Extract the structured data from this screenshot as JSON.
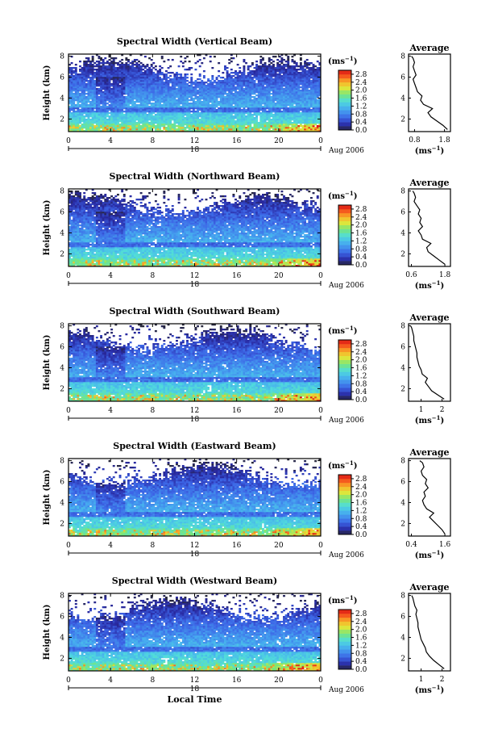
{
  "chart_data": [
    {
      "type": "heatmap",
      "title": "Spectral Width (Vertical Beam)",
      "ylabel": "Height (km)",
      "xlabel": "",
      "xticks": [
        "0",
        "4",
        "8",
        "12",
        "16",
        "20",
        "0"
      ],
      "yticks": [
        "2",
        "4",
        "6",
        "8"
      ],
      "xlim": [
        0,
        24
      ],
      "ylim": [
        0.8,
        8.2
      ],
      "colorbar": {
        "unit": "(ms-1)",
        "ticks": [
          "0.0",
          "0.4",
          "0.8",
          "1.2",
          "1.6",
          "2.0",
          "2.4",
          "2.8"
        ],
        "range": [
          0,
          3
        ]
      },
      "date_labels": {
        "day": "18",
        "month": "Aug 2006"
      },
      "profile": {
        "title": "Average",
        "xlabel": "(ms-1)",
        "xticks": [
          "0.8",
          "1.8"
        ],
        "xlim": [
          0.6,
          2.0
        ],
        "yticks": [
          "2",
          "4",
          "6",
          "8"
        ],
        "ylim": [
          0.8,
          8.2
        ],
        "height_km": [
          1.0,
          1.4,
          1.8,
          2.2,
          2.6,
          3.0,
          3.4,
          3.8,
          4.2,
          4.6,
          5.0,
          5.4,
          5.8,
          6.2,
          6.6,
          7.0,
          7.4,
          7.8,
          8.0
        ],
        "width": [
          1.9,
          1.75,
          1.55,
          1.35,
          1.25,
          1.4,
          1.1,
          1.0,
          1.05,
          0.9,
          0.85,
          0.8,
          0.75,
          0.85,
          0.8,
          0.75,
          0.8,
          0.75,
          0.7
        ]
      }
    },
    {
      "type": "heatmap",
      "title": "Spectral Width (Northward Beam)",
      "ylabel": "Height (km)",
      "xlabel": "",
      "xticks": [
        "0",
        "4",
        "8",
        "12",
        "16",
        "20",
        "0"
      ],
      "yticks": [
        "2",
        "4",
        "6",
        "8"
      ],
      "xlim": [
        0,
        24
      ],
      "ylim": [
        0.8,
        8.2
      ],
      "colorbar": {
        "unit": "(ms-1)",
        "ticks": [
          "0.0",
          "0.4",
          "0.8",
          "1.2",
          "1.6",
          "2.0",
          "2.4",
          "2.8"
        ],
        "range": [
          0,
          3
        ]
      },
      "date_labels": {
        "day": "18",
        "month": "Aug 2006"
      },
      "profile": {
        "title": "Average",
        "xlabel": "(ms-1)",
        "xticks": [
          "0.6",
          "1.8"
        ],
        "xlim": [
          0.5,
          2.0
        ],
        "yticks": [
          "2",
          "4",
          "6",
          "8"
        ],
        "ylim": [
          0.8,
          8.2
        ],
        "height_km": [
          1.0,
          1.4,
          1.8,
          2.2,
          2.6,
          3.0,
          3.4,
          3.8,
          4.2,
          4.6,
          5.0,
          5.4,
          5.8,
          6.2,
          6.6,
          7.0,
          7.4,
          7.8,
          8.0
        ],
        "width": [
          1.8,
          1.6,
          1.4,
          1.2,
          1.15,
          1.3,
          1.0,
          0.95,
          0.85,
          1.0,
          0.9,
          0.95,
          0.85,
          0.9,
          0.8,
          0.7,
          0.75,
          0.7,
          0.65
        ]
      }
    },
    {
      "type": "heatmap",
      "title": "Spectral Width (Southward Beam)",
      "ylabel": "Height (km)",
      "xlabel": "",
      "xticks": [
        "0",
        "4",
        "8",
        "12",
        "16",
        "20",
        "0"
      ],
      "yticks": [
        "2",
        "4",
        "6",
        "8"
      ],
      "xlim": [
        0,
        24
      ],
      "ylim": [
        0.8,
        8.2
      ],
      "colorbar": {
        "unit": "(ms-1)",
        "ticks": [
          "0.0",
          "0.4",
          "0.8",
          "1.2",
          "1.6",
          "2.0",
          "2.4",
          "2.8"
        ],
        "range": [
          0,
          3
        ]
      },
      "date_labels": {
        "day": "18",
        "month": "Aug 2006"
      },
      "profile": {
        "title": "Average",
        "xlabel": "(ms-1)",
        "xticks": [
          "1",
          "2"
        ],
        "xlim": [
          0.4,
          2.4
        ],
        "yticks": [
          "2",
          "4",
          "6",
          "8"
        ],
        "ylim": [
          0.8,
          8.2
        ],
        "height_km": [
          1.0,
          1.4,
          1.8,
          2.2,
          2.6,
          3.0,
          3.4,
          3.8,
          4.2,
          4.6,
          5.0,
          5.4,
          5.8,
          6.2,
          6.6,
          7.0,
          7.4,
          7.8,
          8.0
        ],
        "width": [
          2.1,
          1.8,
          1.5,
          1.35,
          1.2,
          1.3,
          1.05,
          1.0,
          0.9,
          0.85,
          0.8,
          0.8,
          0.75,
          0.7,
          0.65,
          0.65,
          0.6,
          0.55,
          0.5
        ]
      }
    },
    {
      "type": "heatmap",
      "title": "Spectral Width (Eastward Beam)",
      "ylabel": "Height (km)",
      "xlabel": "",
      "xticks": [
        "0",
        "4",
        "8",
        "12",
        "16",
        "20",
        "0"
      ],
      "yticks": [
        "2",
        "4",
        "6",
        "8"
      ],
      "xlim": [
        0,
        24
      ],
      "ylim": [
        0.8,
        8.2
      ],
      "colorbar": {
        "unit": "(ms-1)",
        "ticks": [
          "0.0",
          "0.4",
          "0.8",
          "1.2",
          "1.6",
          "2.0",
          "2.4",
          "2.8"
        ],
        "range": [
          0,
          3
        ]
      },
      "date_labels": {
        "day": "18",
        "month": "Aug 2006"
      },
      "profile": {
        "title": "Average",
        "xlabel": "(ms-1)",
        "xticks": [
          "0.4",
          "1.6"
        ],
        "xlim": [
          0.3,
          1.8
        ],
        "yticks": [
          "2",
          "4",
          "6",
          "8"
        ],
        "ylim": [
          0.8,
          8.2
        ],
        "height_km": [
          1.0,
          1.4,
          1.8,
          2.2,
          2.6,
          3.0,
          3.4,
          3.8,
          4.2,
          4.6,
          5.0,
          5.4,
          5.8,
          6.2,
          6.6,
          7.0,
          7.4,
          7.8,
          8.0
        ],
        "width": [
          1.6,
          1.5,
          1.35,
          1.2,
          1.05,
          1.2,
          0.95,
          0.85,
          0.8,
          0.9,
          0.85,
          1.0,
          0.9,
          0.95,
          0.8,
          0.75,
          0.85,
          0.8,
          0.7
        ]
      }
    },
    {
      "type": "heatmap",
      "title": "Spectral Width (Westward Beam)",
      "ylabel": "Height (km)",
      "xlabel": "Local Time",
      "xticks": [
        "0",
        "4",
        "8",
        "12",
        "16",
        "20",
        "0"
      ],
      "yticks": [
        "2",
        "4",
        "6",
        "8"
      ],
      "xlim": [
        0,
        24
      ],
      "ylim": [
        0.8,
        8.2
      ],
      "colorbar": {
        "unit": "(ms-1)",
        "ticks": [
          "0.0",
          "0.4",
          "0.8",
          "1.2",
          "1.6",
          "2.0",
          "2.4",
          "2.8"
        ],
        "range": [
          0,
          3
        ]
      },
      "date_labels": {
        "day": "18",
        "month": "Aug 2006"
      },
      "profile": {
        "title": "Average",
        "xlabel": "(ms-1)",
        "xticks": [
          "1",
          "2"
        ],
        "xlim": [
          0.4,
          2.4
        ],
        "yticks": [
          "2",
          "4",
          "6",
          "8"
        ],
        "ylim": [
          0.8,
          8.2
        ],
        "height_km": [
          1.0,
          1.4,
          1.8,
          2.2,
          2.6,
          3.0,
          3.4,
          3.8,
          4.2,
          4.6,
          5.0,
          5.4,
          5.8,
          6.2,
          6.6,
          7.0,
          7.4,
          7.8,
          8.0
        ],
        "width": [
          2.1,
          1.85,
          1.6,
          1.4,
          1.25,
          1.2,
          1.1,
          1.0,
          0.95,
          0.9,
          0.85,
          0.85,
          0.8,
          0.75,
          0.8,
          0.7,
          0.65,
          0.6,
          0.55
        ]
      }
    }
  ]
}
